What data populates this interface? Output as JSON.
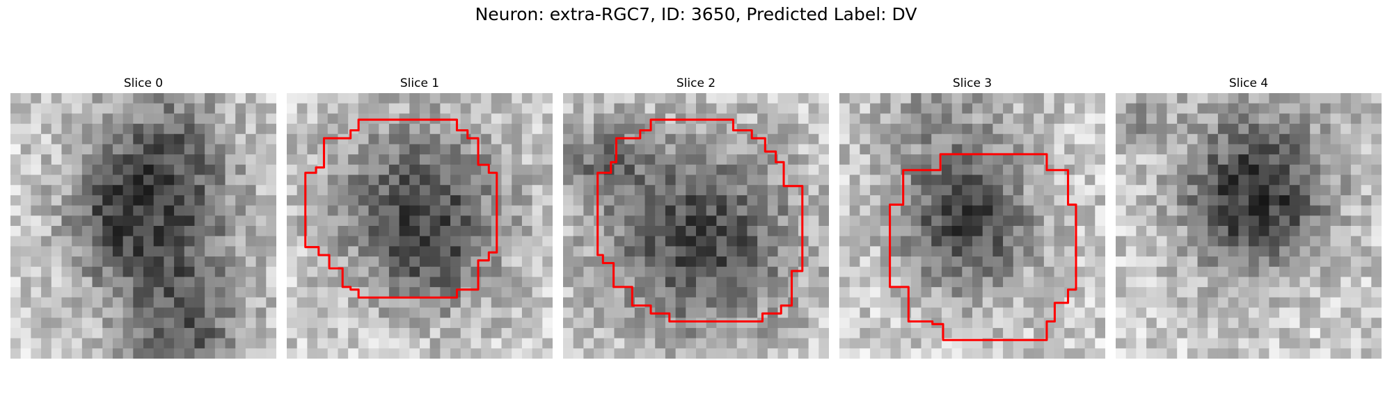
{
  "figure": {
    "title": "Neuron: extra-RGC7, ID: 3650, Predicted Label: DV",
    "contour_color": "#ff0000"
  },
  "panels": [
    {
      "label": "Slice 0",
      "has_contour": false,
      "dark_regions": [
        [
          0.55,
          0.5,
          0.3,
          0.9
        ],
        [
          0.58,
          0.17,
          0.26,
          0.55
        ],
        [
          0.65,
          0.92,
          0.25,
          0.7
        ],
        [
          0.35,
          0.48,
          0.18,
          0.35
        ]
      ],
      "contour": []
    },
    {
      "label": "Slice 1",
      "has_contour": true,
      "dark_regions": [
        [
          0.5,
          0.43,
          0.34,
          0.9
        ],
        [
          0.55,
          0.65,
          0.2,
          0.3
        ]
      ],
      "contour": [
        [
          0.27,
          0.1
        ],
        [
          0.64,
          0.1
        ],
        [
          0.64,
          0.14
        ],
        [
          0.68,
          0.14
        ],
        [
          0.68,
          0.17
        ],
        [
          0.72,
          0.17
        ],
        [
          0.72,
          0.27
        ],
        [
          0.76,
          0.27
        ],
        [
          0.76,
          0.3
        ],
        [
          0.79,
          0.3
        ],
        [
          0.79,
          0.6
        ],
        [
          0.76,
          0.6
        ],
        [
          0.76,
          0.63
        ],
        [
          0.72,
          0.63
        ],
        [
          0.72,
          0.74
        ],
        [
          0.64,
          0.74
        ],
        [
          0.64,
          0.77
        ],
        [
          0.27,
          0.77
        ],
        [
          0.27,
          0.74
        ],
        [
          0.24,
          0.74
        ],
        [
          0.24,
          0.73
        ],
        [
          0.21,
          0.73
        ],
        [
          0.21,
          0.66
        ],
        [
          0.16,
          0.66
        ],
        [
          0.16,
          0.61
        ],
        [
          0.12,
          0.61
        ],
        [
          0.12,
          0.58
        ],
        [
          0.07,
          0.58
        ],
        [
          0.07,
          0.3
        ],
        [
          0.11,
          0.3
        ],
        [
          0.11,
          0.28
        ],
        [
          0.14,
          0.28
        ],
        [
          0.14,
          0.17
        ],
        [
          0.24,
          0.17
        ],
        [
          0.24,
          0.14
        ],
        [
          0.27,
          0.14
        ]
      ]
    },
    {
      "label": "Slice 2",
      "has_contour": true,
      "dark_regions": [
        [
          0.52,
          0.55,
          0.38,
          0.95
        ],
        [
          0.15,
          0.25,
          0.18,
          0.5
        ]
      ],
      "contour": [
        [
          0.33,
          0.1
        ],
        [
          0.64,
          0.1
        ],
        [
          0.64,
          0.14
        ],
        [
          0.71,
          0.14
        ],
        [
          0.71,
          0.17
        ],
        [
          0.76,
          0.17
        ],
        [
          0.76,
          0.22
        ],
        [
          0.8,
          0.22
        ],
        [
          0.8,
          0.26
        ],
        [
          0.83,
          0.26
        ],
        [
          0.83,
          0.35
        ],
        [
          0.9,
          0.35
        ],
        [
          0.9,
          0.67
        ],
        [
          0.86,
          0.67
        ],
        [
          0.86,
          0.8
        ],
        [
          0.82,
          0.8
        ],
        [
          0.82,
          0.83
        ],
        [
          0.75,
          0.83
        ],
        [
          0.75,
          0.86
        ],
        [
          0.4,
          0.86
        ],
        [
          0.4,
          0.83
        ],
        [
          0.33,
          0.83
        ],
        [
          0.33,
          0.8
        ],
        [
          0.26,
          0.8
        ],
        [
          0.26,
          0.73
        ],
        [
          0.19,
          0.73
        ],
        [
          0.19,
          0.64
        ],
        [
          0.15,
          0.64
        ],
        [
          0.15,
          0.61
        ],
        [
          0.13,
          0.61
        ],
        [
          0.13,
          0.3
        ],
        [
          0.18,
          0.3
        ],
        [
          0.18,
          0.26
        ],
        [
          0.2,
          0.26
        ],
        [
          0.2,
          0.17
        ],
        [
          0.29,
          0.17
        ],
        [
          0.29,
          0.14
        ],
        [
          0.33,
          0.14
        ]
      ]
    },
    {
      "label": "Slice 3",
      "has_contour": true,
      "dark_regions": [
        [
          0.48,
          0.5,
          0.26,
          0.95
        ],
        [
          0.4,
          0.12,
          0.3,
          0.35
        ]
      ],
      "contour": [
        [
          0.38,
          0.23
        ],
        [
          0.78,
          0.23
        ],
        [
          0.78,
          0.29
        ],
        [
          0.86,
          0.29
        ],
        [
          0.86,
          0.42
        ],
        [
          0.89,
          0.42
        ],
        [
          0.89,
          0.74
        ],
        [
          0.86,
          0.74
        ],
        [
          0.86,
          0.79
        ],
        [
          0.81,
          0.79
        ],
        [
          0.81,
          0.86
        ],
        [
          0.78,
          0.86
        ],
        [
          0.78,
          0.93
        ],
        [
          0.39,
          0.93
        ],
        [
          0.39,
          0.87
        ],
        [
          0.35,
          0.87
        ],
        [
          0.35,
          0.86
        ],
        [
          0.26,
          0.86
        ],
        [
          0.26,
          0.73
        ],
        [
          0.19,
          0.73
        ],
        [
          0.19,
          0.42
        ],
        [
          0.24,
          0.42
        ],
        [
          0.24,
          0.29
        ],
        [
          0.38,
          0.29
        ]
      ]
    },
    {
      "label": "Slice 4",
      "has_contour": false,
      "dark_regions": [
        [
          0.52,
          0.43,
          0.26,
          0.9
        ],
        [
          0.55,
          0.22,
          0.35,
          0.4
        ],
        [
          0.1,
          0.1,
          0.1,
          0.35
        ]
      ],
      "contour": []
    }
  ]
}
